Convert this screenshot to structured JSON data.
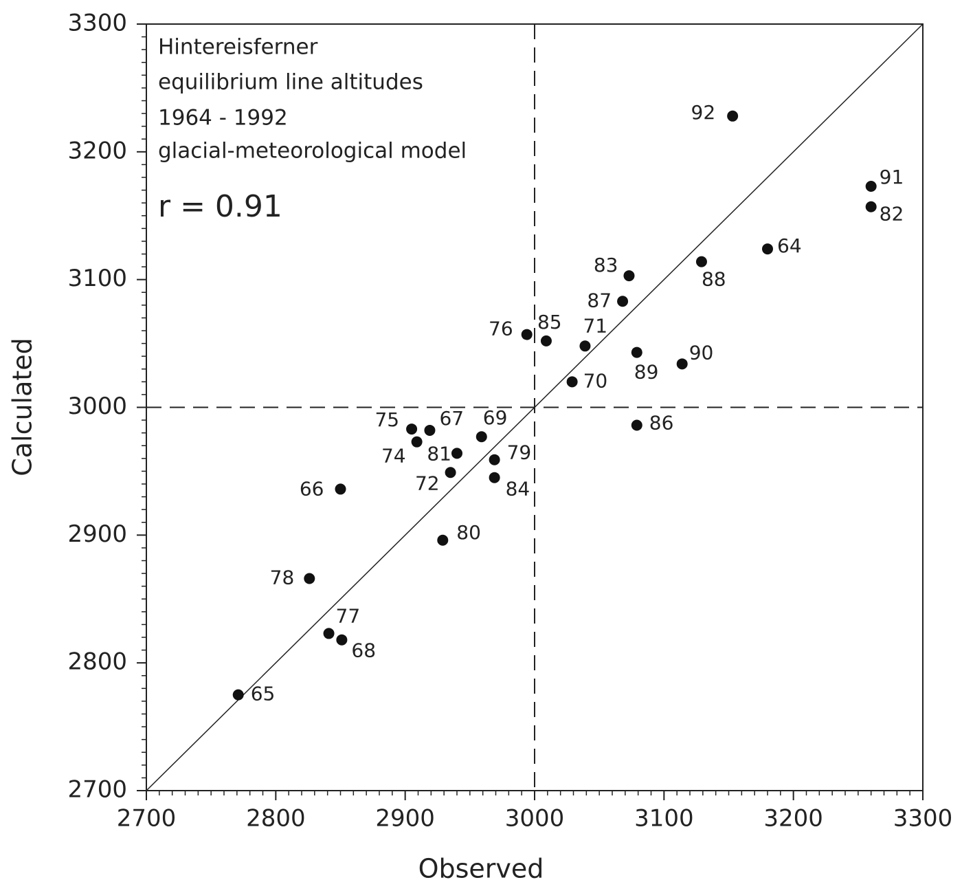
{
  "chart_data": {
    "type": "scatter",
    "x_label": "Observed",
    "y_label": "Calculated",
    "annotations": [
      "Hintereisferner",
      "equilibrium line altitudes",
      "1964 - 1992",
      "glacial-meteorological model",
      "r = 0.91"
    ],
    "point_labels": [
      "92",
      "91",
      "82",
      "64",
      "88",
      "83",
      "87",
      "76",
      "85",
      "71",
      "89",
      "90",
      "70",
      "86",
      "75",
      "67",
      "74",
      "69",
      "81",
      "79",
      "72",
      "84",
      "66",
      "80",
      "78",
      "77",
      "68",
      "65"
    ],
    "x": [
      3153,
      3260,
      3260,
      3180,
      3129,
      3073,
      3068,
      2994,
      3009,
      3039,
      3079,
      3114,
      3029,
      3079,
      2905,
      2919,
      2909,
      2959,
      2940,
      2969,
      2935,
      2969,
      2850,
      2929,
      2826,
      2841,
      2851,
      2771
    ],
    "y": [
      3228,
      3173,
      3157,
      3124,
      3114,
      3103,
      3083,
      3057,
      3052,
      3048,
      3043,
      3034,
      3020,
      2986,
      2983,
      2982,
      2973,
      2977,
      2964,
      2959,
      2949,
      2945,
      2936,
      2896,
      2866,
      2823,
      2818,
      2775
    ],
    "color": "#111111",
    "xlim": [
      2700,
      3300
    ],
    "ylim": [
      2700,
      3300
    ],
    "xticks": [
      2700,
      2800,
      2900,
      3000,
      3100,
      3200,
      3300
    ],
    "yticks": [
      2700,
      2800,
      2900,
      3000,
      3100,
      3200,
      3300
    ],
    "minor_tick_step": 10,
    "reference_lines": {
      "x": 3000,
      "y": 3000
    },
    "identity_line": true
  }
}
